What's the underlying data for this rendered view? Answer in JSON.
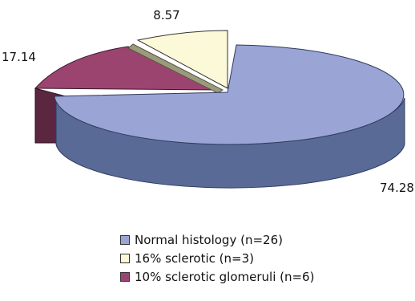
{
  "chart_data": {
    "type": "pie",
    "style": "3d-exploded",
    "legend_position": "bottom",
    "slices": [
      {
        "label": "Normal histology (n=26)",
        "value": 74.28,
        "value_label": "74.28",
        "color": "#9aa5d6",
        "side_color": "#5a6a97"
      },
      {
        "label": "16% sclerotic (n=3)",
        "value": 8.57,
        "value_label": "8.57",
        "color": "#fbf9d7",
        "side_color": "#9b9b7c"
      },
      {
        "label": "10%  sclerotic glomeruli (n=6)",
        "value": 17.14,
        "value_label": "17.14",
        "color": "#9c4470",
        "side_color": "#5b2640"
      }
    ]
  }
}
